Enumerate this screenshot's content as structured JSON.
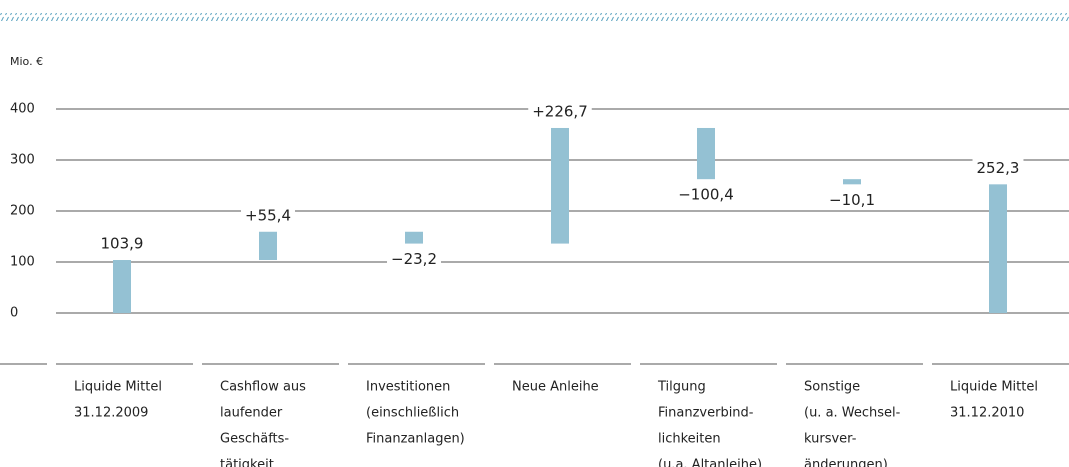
{
  "chart_data": {
    "type": "waterfall",
    "unit_label": "Mio. €",
    "categories": [
      [
        "Liquide Mittel",
        "31.12.2009"
      ],
      [
        "Cashflow aus",
        "laufender",
        "Geschäfts-",
        "tätigkeit"
      ],
      [
        "Investitionen",
        "(einschließlich",
        "Finanzanlagen)"
      ],
      [
        "Neue Anleihe"
      ],
      [
        "Tilgung",
        "Finanzverbind-",
        "lichkeiten",
        "(u.a. Altanleihe)"
      ],
      [
        "Sonstige",
        "(u. a. Wechsel-",
        "kursver-",
        "änderungen)"
      ],
      [
        "Liquide Mittel",
        "31.12.2010"
      ]
    ],
    "values": [
      103.9,
      55.4,
      -23.2,
      226.7,
      -100.4,
      -10.1,
      252.3
    ],
    "value_labels": [
      "103,9",
      "+55,4",
      "−23,2",
      "+226,7",
      "−100,4",
      "−10,1",
      "252,3"
    ],
    "measure": [
      "relative",
      "relative",
      "relative",
      "relative",
      "relative",
      "relative",
      "total"
    ],
    "color": "#94c1d3",
    "ylim": [
      -100,
      400
    ],
    "yticks": [
      0,
      100,
      200,
      300,
      400
    ],
    "grid": true
  }
}
